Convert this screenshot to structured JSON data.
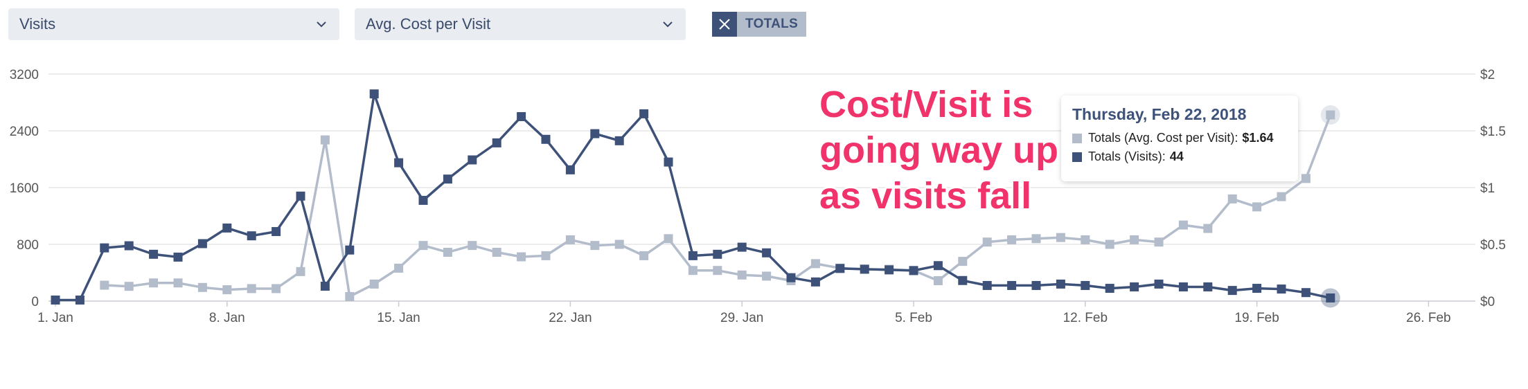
{
  "toolbar": {
    "metric1": "Visits",
    "metric2": "Avg. Cost per Visit",
    "totals_label": "TOTALS"
  },
  "colors": {
    "visits": "#3d5179",
    "cost": "#b3bccb",
    "annotation": "#f0336a"
  },
  "annotation": {
    "line1": "Cost/Visit is",
    "line2": "going way up",
    "line3": "as visits fall"
  },
  "tooltip": {
    "date": "Thursday, Feb 22, 2018",
    "cost_label": "Totals (Avg. Cost per Visit):",
    "cost_value": "$1.64",
    "visits_label": "Totals (Visits):",
    "visits_value": "44"
  },
  "chart_data": {
    "type": "line",
    "x_start": "2018-01-01",
    "x_ticks": [
      "1. Jan",
      "8. Jan",
      "15. Jan",
      "22. Jan",
      "29. Jan",
      "5. Feb",
      "12. Feb",
      "19. Feb",
      "26. Feb"
    ],
    "y_left_ticks": [
      "0",
      "800",
      "1600",
      "2400",
      "3200"
    ],
    "y_right_ticks": [
      "$0",
      "$0.5",
      "$1",
      "$1.5",
      "$2"
    ],
    "ylim_left": [
      0,
      3200
    ],
    "ylim_right": [
      0,
      2
    ],
    "grid": true,
    "series": [
      {
        "axis": "left",
        "values": [
          15,
          15,
          750,
          780,
          660,
          620,
          810,
          1030,
          920,
          980,
          1480,
          210,
          720,
          2920,
          1950,
          1420,
          1720,
          1990,
          2230,
          2600,
          2280,
          1850,
          2360,
          2260,
          2640,
          1960,
          640,
          660,
          760,
          680,
          330,
          270,
          460,
          450,
          440,
          430,
          500,
          290,
          220,
          220,
          220,
          240,
          220,
          180,
          200,
          240,
          200,
          200,
          150,
          180,
          170,
          120,
          44
        ]
      },
      {
        "axis": "right",
        "values": [
          null,
          null,
          0.14,
          0.13,
          0.16,
          0.16,
          0.12,
          0.1,
          0.11,
          0.11,
          0.26,
          1.42,
          0.04,
          0.15,
          0.29,
          0.49,
          0.43,
          0.49,
          0.43,
          0.39,
          0.4,
          0.54,
          0.49,
          0.5,
          0.4,
          0.55,
          0.27,
          0.27,
          0.23,
          0.22,
          0.18,
          0.33,
          0.29,
          0.28,
          0.28,
          0.27,
          0.18,
          0.35,
          0.52,
          0.54,
          0.55,
          0.56,
          0.54,
          0.5,
          0.54,
          0.52,
          0.67,
          0.64,
          0.9,
          0.83,
          0.92,
          1.08,
          1.64
        ]
      }
    ]
  }
}
